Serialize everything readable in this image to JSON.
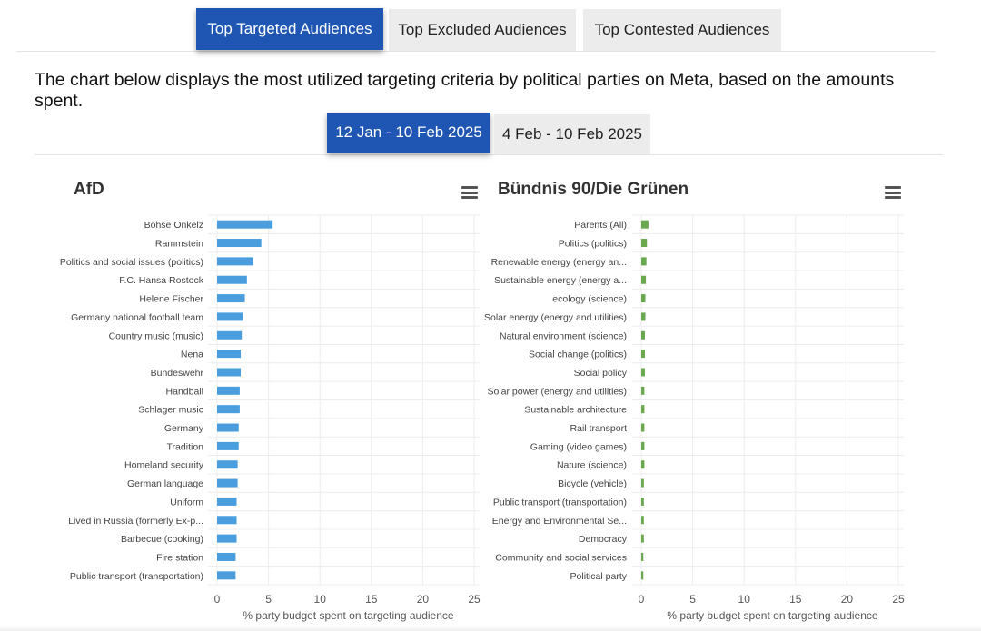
{
  "tabs": [
    {
      "label": "Top Targeted Audiences",
      "active": true
    },
    {
      "label": "Top Excluded Audiences",
      "active": false
    },
    {
      "label": "Top Contested Audiences",
      "active": false
    }
  ],
  "description": "The chart below displays the most utilized targeting criteria by political parties on Meta, based on the amounts spent.",
  "date_ranges": [
    {
      "label": "12 Jan - 10 Feb 2025",
      "active": true
    },
    {
      "label": "4 Feb - 10 Feb 2025",
      "active": false
    }
  ],
  "charts": [
    {
      "title": "AfD",
      "menu_icon": "hamburger-menu-icon"
    },
    {
      "title": "Bündnis 90/Die Grünen",
      "menu_icon": "hamburger-menu-icon"
    }
  ],
  "chart_data": [
    {
      "type": "bar",
      "orientation": "horizontal",
      "title": "AfD",
      "xlabel": "% party budget spent on targeting audience",
      "ylabel": "",
      "xlim": [
        0,
        25
      ],
      "xticks": [
        0,
        5,
        10,
        15,
        20,
        25
      ],
      "grid": true,
      "color": "#4a9ede",
      "categories": [
        "Böhse Onkelz",
        "Rammstein",
        "Politics and social issues (politics)",
        "F.C. Hansa Rostock",
        "Helene Fischer",
        "Germany national football team",
        "Country music (music)",
        "Nena",
        "Bundeswehr",
        "Handball",
        "Schlager music",
        "Germany",
        "Tradition",
        "Homeland security",
        "German language",
        "Uniform",
        "Lived in Russia (formerly Ex-p...",
        "Barbecue (cooking)",
        "Fire station",
        "Public transport (transportation)"
      ],
      "values": [
        5.4,
        4.3,
        3.5,
        2.9,
        2.7,
        2.5,
        2.4,
        2.3,
        2.3,
        2.2,
        2.2,
        2.1,
        2.1,
        2.0,
        2.0,
        1.9,
        1.9,
        1.9,
        1.8,
        1.8
      ]
    },
    {
      "type": "bar",
      "orientation": "horizontal",
      "title": "Bündnis 90/Die Grünen",
      "xlabel": "% party budget spent on targeting audience",
      "ylabel": "",
      "xlim": [
        0,
        25
      ],
      "xticks": [
        0,
        5,
        10,
        15,
        20,
        25
      ],
      "grid": true,
      "color": "#6aa84f",
      "categories": [
        "Parents (All)",
        "Politics (politics)",
        "Renewable energy (energy an...",
        "Sustainable energy (energy a...",
        "ecology (science)",
        "Solar energy (energy and utilities)",
        "Natural environment (science)",
        "Social change (politics)",
        "Social policy",
        "Solar power (energy and utilities)",
        "Sustainable architecture",
        "Rail transport",
        "Gaming (video games)",
        "Nature (science)",
        "Bicycle (vehicle)",
        "Public transport (transportation)",
        "Energy and Environmental Se...",
        "Democracy",
        "Community and social services",
        "Political party"
      ],
      "values": [
        0.7,
        0.55,
        0.5,
        0.45,
        0.4,
        0.4,
        0.35,
        0.35,
        0.35,
        0.3,
        0.3,
        0.3,
        0.3,
        0.3,
        0.25,
        0.25,
        0.25,
        0.25,
        0.2,
        0.2
      ]
    }
  ]
}
